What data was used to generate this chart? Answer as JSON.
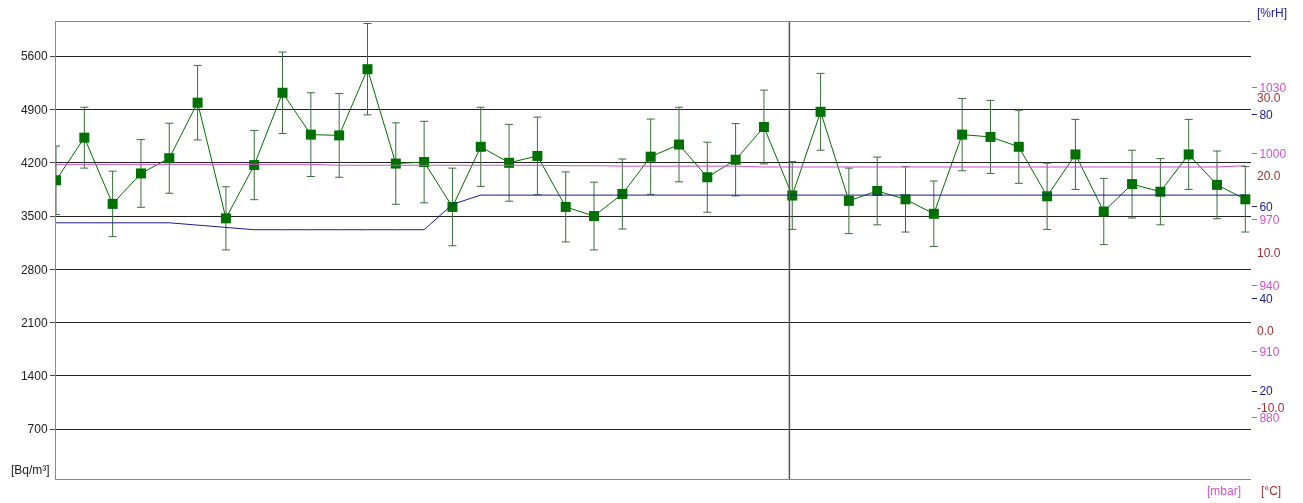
{
  "chart_data": {
    "type": "line",
    "categories": [
      null,
      null,
      null,
      null,
      null,
      null,
      null,
      null,
      null,
      null,
      null,
      null,
      null,
      null,
      null,
      null,
      null,
      null,
      null,
      null,
      null,
      null,
      null,
      null,
      null,
      null,
      null,
      null,
      null,
      null,
      null,
      null,
      null,
      null,
      null,
      null,
      null,
      null,
      null,
      null,
      null,
      null,
      null
    ],
    "series": [
      {
        "color": "#007000",
        "marker": "square",
        "axis": "y",
        "values": [
          3970,
          4530,
          3660,
          4060,
          4260,
          4990,
          3470,
          4170,
          5120,
          4570,
          4560,
          5430,
          4190,
          4210,
          3620,
          4410,
          4200,
          4290,
          3620,
          3500,
          3790,
          4280,
          4440,
          4010,
          4240,
          4670,
          3770,
          4870,
          3700,
          3830,
          3720,
          3530,
          4570,
          4540,
          4410,
          3760,
          4310,
          3560,
          3920,
          3820,
          4310,
          3910,
          3720
        ],
        "errors": [
          450,
          400,
          430,
          445,
          460,
          490,
          415,
          455,
          535,
          550,
          550,
          600,
          535,
          535,
          510,
          520,
          505,
          510,
          460,
          445,
          460,
          495,
          490,
          460,
          475,
          485,
          445,
          505,
          430,
          445,
          430,
          430,
          475,
          480,
          480,
          435,
          460,
          435,
          445,
          435,
          460,
          445,
          430
        ]
      },
      {
        "color": "#1c1c8c",
        "axis": "y2",
        "values": [
          56.5,
          56.5,
          56.5,
          56.5,
          56.5,
          56,
          55.5,
          55,
          55,
          55,
          55,
          55,
          55,
          55,
          60.5,
          62.5,
          62.5,
          62.5,
          62.5,
          62.5,
          62.5,
          62.5,
          62.5,
          62.5,
          62.5,
          62.5,
          62.5,
          62.5,
          62.5,
          62.5,
          62.5,
          62.5,
          62.5,
          62.5,
          62.5,
          62.5,
          62.5,
          62.5,
          62.5,
          62.5,
          62.5,
          62.5,
          62.5
        ]
      },
      {
        "color": "#d050d0",
        "axis": "y3",
        "values": [
          995.2,
          995.2,
          995.2,
          995.2,
          995.2,
          995.2,
          995.2,
          995.2,
          995.2,
          995.2,
          994.8,
          994.8,
          994.8,
          994.8,
          994.8,
          994.8,
          994.8,
          994.8,
          994.6,
          994.6,
          994.4,
          994.4,
          994.4,
          994.4,
          994.4,
          994,
          994,
          994,
          994,
          994,
          994,
          994,
          994,
          994,
          994,
          994,
          994,
          994,
          994,
          994,
          994,
          994,
          994.6
        ]
      }
    ],
    "ylabel": "[Bq/m³]",
    "ylim": [
      45,
      6050
    ],
    "yticks": [
      700,
      1400,
      2100,
      2800,
      3500,
      4200,
      4900,
      5600
    ],
    "y2label": "[%rH]",
    "y2lim": [
      1,
      100
    ],
    "y2ticks": [
      20,
      40,
      60,
      80
    ],
    "y3label": "[mbar]",
    "y3lim": [
      852,
      1060
    ],
    "y3ticks": [
      880,
      910,
      940,
      970,
      1000,
      1030
    ],
    "annotations": [
      "[°C]",
      "30.0",
      "20.0",
      "10.0",
      "0.0",
      "-10.0"
    ],
    "grid": "y"
  }
}
